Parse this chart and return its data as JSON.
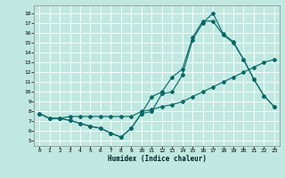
{
  "xlabel": "Humidex (Indice chaleur)",
  "bg_color": "#c0e8e0",
  "grid_color": "#ffffff",
  "line_color": "#006868",
  "xlim": [
    -0.5,
    23.5
  ],
  "ylim": [
    4.5,
    18.8
  ],
  "xticks": [
    0,
    1,
    2,
    3,
    4,
    5,
    6,
    7,
    8,
    9,
    10,
    11,
    12,
    13,
    14,
    15,
    16,
    17,
    18,
    19,
    20,
    21,
    22,
    23
  ],
  "yticks": [
    5,
    6,
    7,
    8,
    9,
    10,
    11,
    12,
    13,
    14,
    15,
    16,
    17,
    18
  ],
  "line1_x": [
    0,
    1,
    2,
    3,
    4,
    5,
    6,
    7,
    8,
    9,
    10,
    11,
    12,
    13,
    14,
    15,
    16,
    17,
    18,
    19,
    20,
    21,
    22,
    23
  ],
  "line1_y": [
    7.8,
    7.3,
    7.3,
    7.1,
    6.8,
    6.5,
    6.3,
    5.8,
    5.4,
    6.3,
    7.8,
    8.0,
    9.8,
    10.0,
    11.7,
    15.3,
    17.0,
    18.0,
    15.9,
    15.1,
    13.3,
    11.3,
    9.6,
    8.5
  ],
  "line2_x": [
    0,
    1,
    2,
    3,
    4,
    5,
    6,
    7,
    8,
    9,
    10,
    11,
    12,
    13,
    14,
    15,
    16,
    17,
    18,
    19,
    20,
    21,
    22,
    23
  ],
  "line2_y": [
    7.8,
    7.3,
    7.3,
    7.1,
    6.8,
    6.5,
    6.3,
    5.8,
    5.4,
    6.3,
    7.8,
    9.5,
    10.0,
    11.5,
    12.3,
    15.5,
    17.2,
    17.2,
    15.8,
    15.0,
    13.3,
    11.3,
    9.6,
    8.5
  ],
  "line3_x": [
    0,
    1,
    2,
    3,
    4,
    5,
    6,
    7,
    8,
    9,
    10,
    11,
    12,
    13,
    14,
    15,
    16,
    17,
    18,
    19,
    20,
    21,
    22,
    23
  ],
  "line3_y": [
    7.8,
    7.3,
    7.3,
    7.5,
    7.5,
    7.5,
    7.5,
    7.5,
    7.5,
    7.5,
    8.0,
    8.2,
    8.5,
    8.7,
    9.0,
    9.5,
    10.0,
    10.5,
    11.0,
    11.5,
    12.0,
    12.5,
    13.0,
    13.3
  ]
}
